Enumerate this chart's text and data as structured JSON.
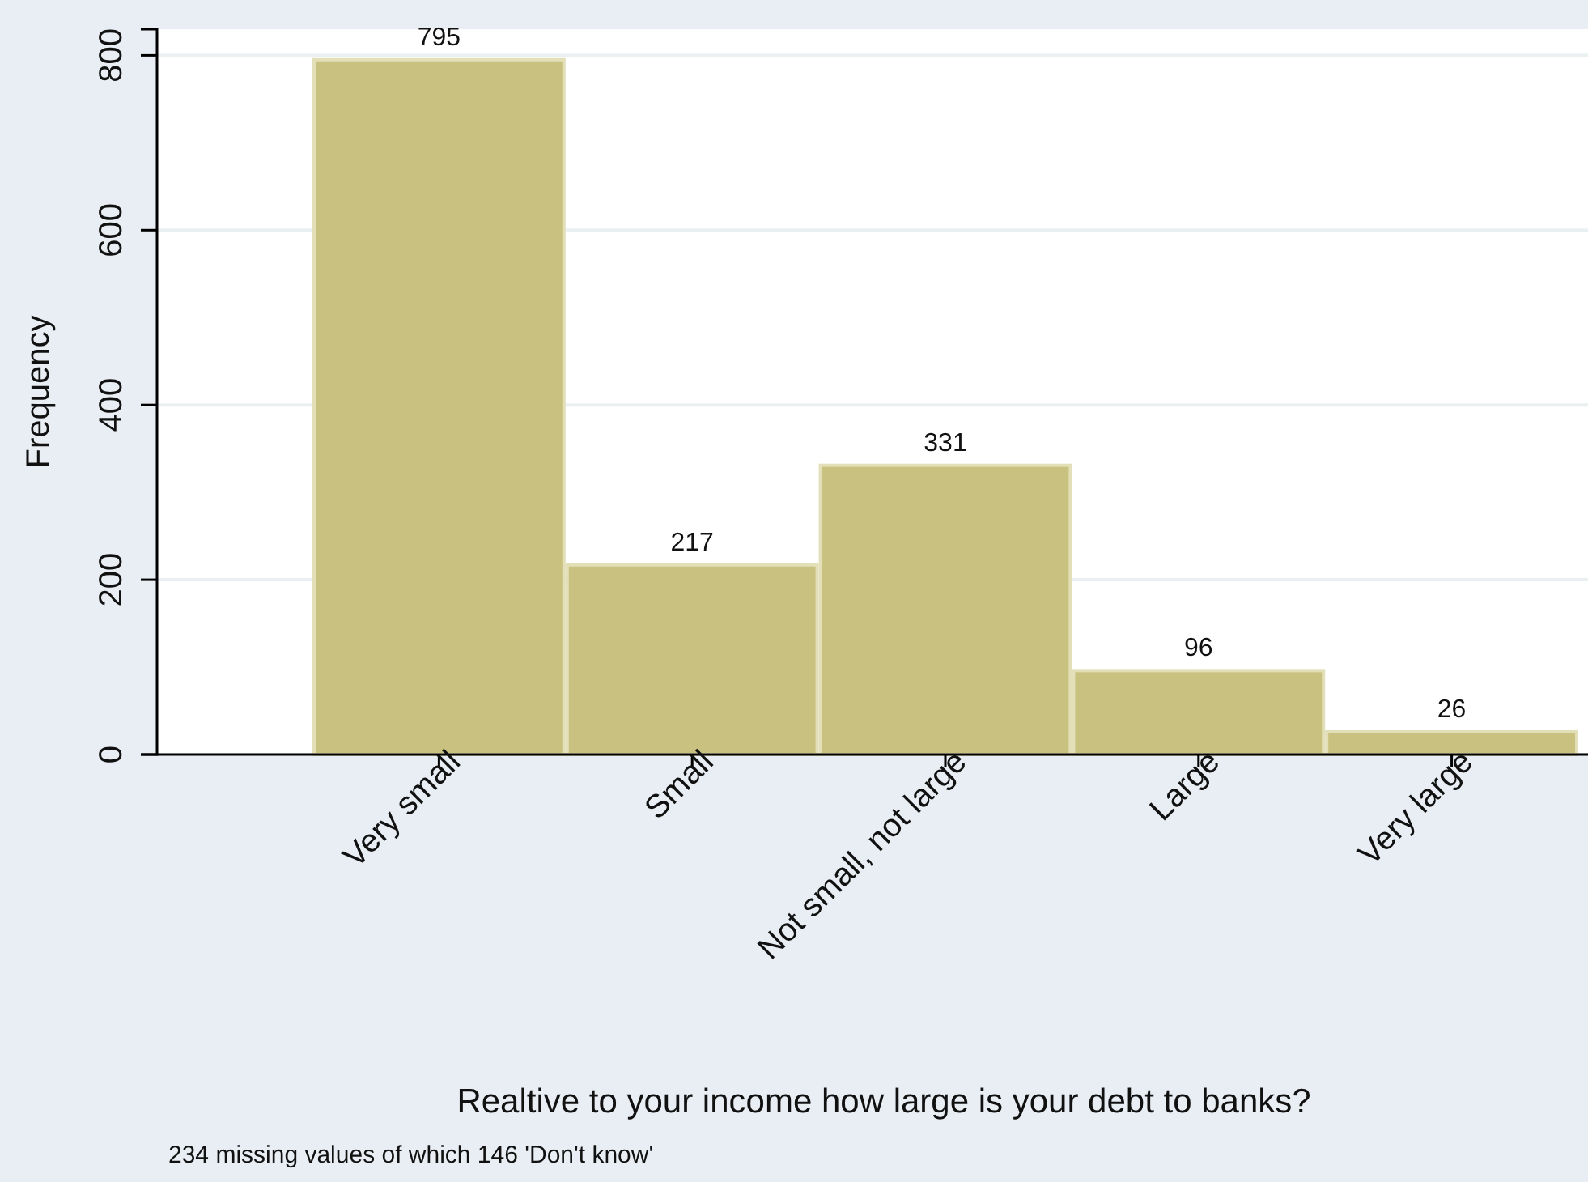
{
  "chart_data": {
    "type": "bar",
    "xlabel": "Realtive to your income how large is your debt to banks?",
    "ylabel": "Frequency",
    "categories": [
      "Very small",
      "Small",
      "Not small, not large",
      "Large",
      "Very large"
    ],
    "values": [
      795,
      217,
      331,
      96,
      26
    ],
    "color": "#c9c17f",
    "ylim": [
      0,
      830
    ],
    "yticks": [
      0,
      200,
      400,
      600,
      800
    ],
    "grid": "y",
    "data_labels": true,
    "annotations": [
      "234 missing values of which 146 'Don't know'"
    ]
  }
}
